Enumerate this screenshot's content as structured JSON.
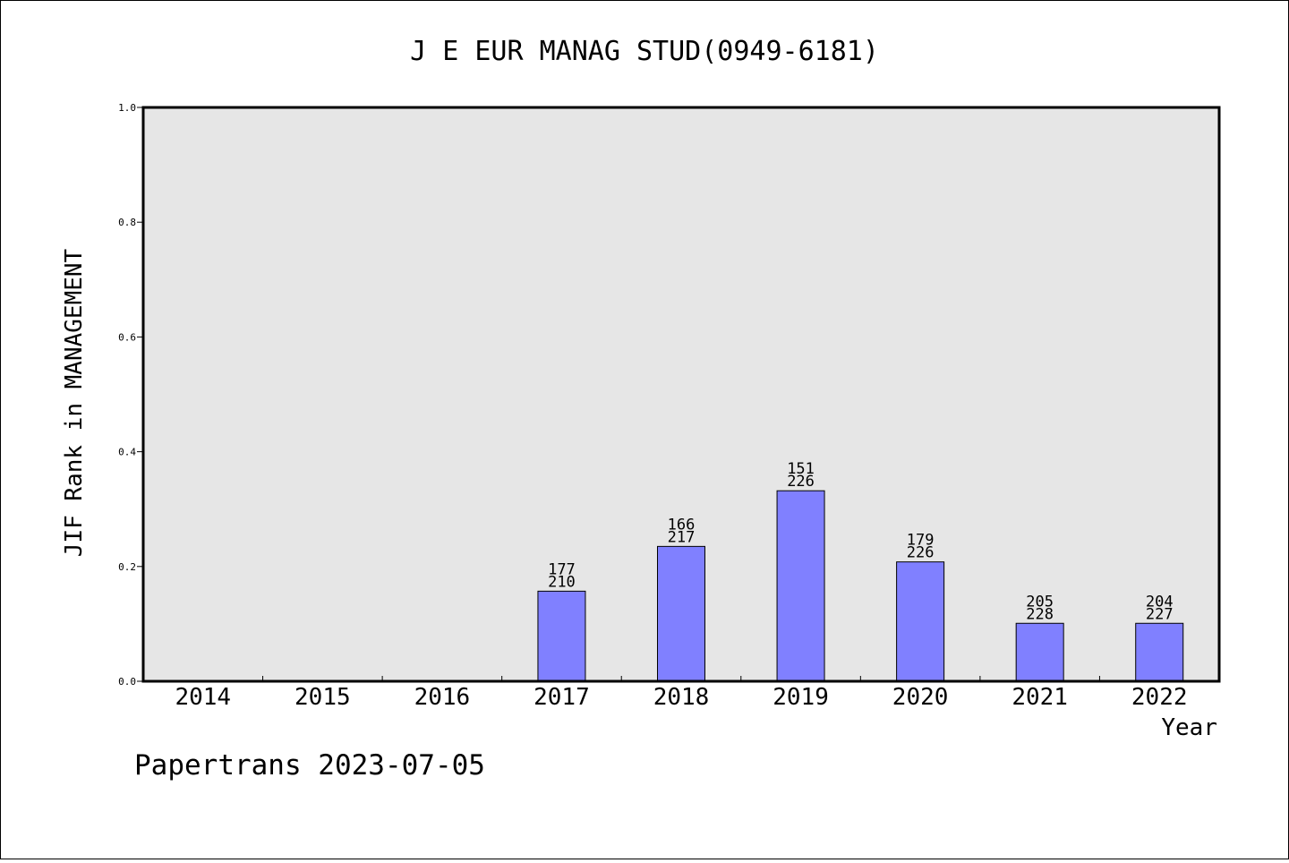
{
  "chart_data": {
    "type": "bar",
    "title": "J E EUR MANAG STUD(0949-6181)",
    "xlabel": "Year",
    "ylabel": "JIF Rank in MANAGEMENT",
    "footer": "Papertrans 2023-07-05",
    "categories": [
      "2014",
      "2015",
      "2016",
      "2017",
      "2018",
      "2019",
      "2020",
      "2021",
      "2022"
    ],
    "values": [
      null,
      null,
      null,
      0.157,
      0.235,
      0.332,
      0.208,
      0.101,
      0.101
    ],
    "rank": [
      null,
      null,
      null,
      "177",
      "166",
      "151",
      "179",
      "205",
      "204"
    ],
    "total": [
      null,
      null,
      null,
      "210",
      "217",
      "226",
      "226",
      "228",
      "227"
    ],
    "ylim": [
      0,
      1.0
    ],
    "yticks": [
      "0.0",
      "0.2",
      "0.4",
      "0.6",
      "0.8",
      "1.0"
    ],
    "bar_color": "#8080ff",
    "plot_background": "#e6e6e6",
    "grid": false
  }
}
